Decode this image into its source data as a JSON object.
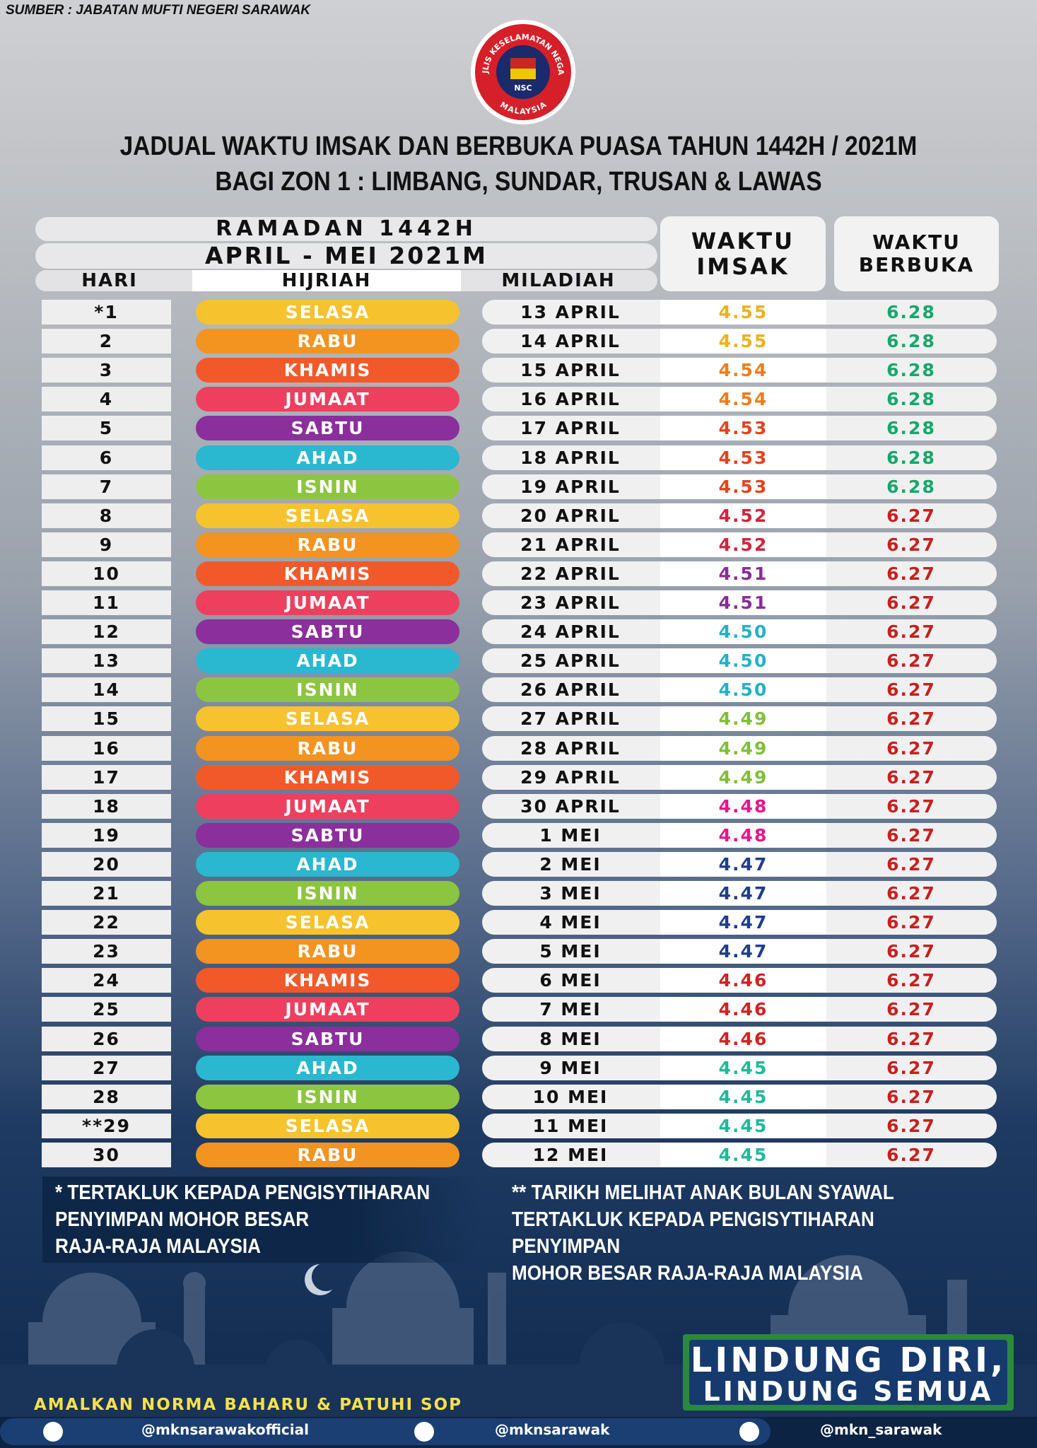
{
  "header": {
    "source": "SUMBER : JABATAN MUFTI NEGERI SARAWAK",
    "logo": {
      "top": "MAJLIS KESELAMATAN NEGARA",
      "center": "NSC",
      "bottom": "MALAYSIA"
    },
    "title": [
      "JADUAL WAKTU IMSAK DAN BERBUKA PUASA TAHUN 1442H / 2021M",
      "BAGI ZON 1 : LIMBANG, SUNDAR, TRUSAN & LAWAS"
    ]
  },
  "table": {
    "ramadan": "RAMADAN 1442H",
    "months": "APRIL - MEI 2021M",
    "columns": [
      "HARI",
      "HIJRIAH",
      "MILADIAH",
      "WAKTU IMSAK",
      "WAKTU BERBUKA"
    ],
    "rows": [
      [
        "*1",
        "SELASA",
        "13 APRIL",
        "4.55",
        "6.28"
      ],
      [
        "2",
        "RABU",
        "14 APRIL",
        "4.55",
        "6.28"
      ],
      [
        "3",
        "KHAMIS",
        "15 APRIL",
        "4.54",
        "6.28"
      ],
      [
        "4",
        "JUMAAT",
        "16 APRIL",
        "4.54",
        "6.28"
      ],
      [
        "5",
        "SABTU",
        "17 APRIL",
        "4.53",
        "6.28"
      ],
      [
        "6",
        "AHAD",
        "18 APRIL",
        "4.53",
        "6.28"
      ],
      [
        "7",
        "ISNIN",
        "19 APRIL",
        "4.53",
        "6.28"
      ],
      [
        "8",
        "SELASA",
        "20 APRIL",
        "4.52",
        "6.27"
      ],
      [
        "9",
        "RABU",
        "21 APRIL",
        "4.52",
        "6.27"
      ],
      [
        "10",
        "KHAMIS",
        "22 APRIL",
        "4.51",
        "6.27"
      ],
      [
        "11",
        "JUMAAT",
        "23 APRIL",
        "4.51",
        "6.27"
      ],
      [
        "12",
        "SABTU",
        "24 APRIL",
        "4.50",
        "6.27"
      ],
      [
        "13",
        "AHAD",
        "25 APRIL",
        "4.50",
        "6.27"
      ],
      [
        "14",
        "ISNIN",
        "26 APRIL",
        "4.50",
        "6.27"
      ],
      [
        "15",
        "SELASA",
        "27 APRIL",
        "4.49",
        "6.27"
      ],
      [
        "16",
        "RABU",
        "28 APRIL",
        "4.49",
        "6.27"
      ],
      [
        "17",
        "KHAMIS",
        "29 APRIL",
        "4.49",
        "6.27"
      ],
      [
        "18",
        "JUMAAT",
        "30 APRIL",
        "4.48",
        "6.27"
      ],
      [
        "19",
        "SABTU",
        "1 MEI",
        "4.48",
        "6.27"
      ],
      [
        "20",
        "AHAD",
        "2 MEI",
        "4.47",
        "6.27"
      ],
      [
        "21",
        "ISNIN",
        "3 MEI",
        "4.47",
        "6.27"
      ],
      [
        "22",
        "SELASA",
        "4 MEI",
        "4.47",
        "6.27"
      ],
      [
        "23",
        "RABU",
        "5 MEI",
        "4.47",
        "6.27"
      ],
      [
        "24",
        "KHAMIS",
        "6 MEI",
        "4.46",
        "6.27"
      ],
      [
        "25",
        "JUMAAT",
        "7 MEI",
        "4.46",
        "6.27"
      ],
      [
        "26",
        "SABTU",
        "8 MEI",
        "4.46",
        "6.27"
      ],
      [
        "27",
        "AHAD",
        "9 MEI",
        "4.45",
        "6.27"
      ],
      [
        "28",
        "ISNIN",
        "10 MEI",
        "4.45",
        "6.27"
      ],
      [
        "**29",
        "SELASA",
        "11 MEI",
        "4.45",
        "6.27"
      ],
      [
        "30",
        "RABU",
        "12 MEI",
        "4.45",
        "6.27"
      ]
    ]
  },
  "notes": {
    "left": [
      "* TERTAKLUK KEPADA PENGISYTIHARAN",
      "PENYIMPAN MOHOR BESAR",
      "RAJA-RAJA MALAYSIA"
    ],
    "right": [
      "** TARIKH MELIHAT ANAK BULAN SYAWAL",
      "TERTAKLUK KEPADA PENGISYTIHARAN PENYIMPAN",
      "MOHOR BESAR RAJA-RAJA MALAYSIA"
    ]
  },
  "footer": {
    "slogan": [
      "LINDUNG DIRI,",
      "LINDUNG SEMUA"
    ],
    "sop": "AMALKAN NORMA BAHARU & PATUHI SOP",
    "social": [
      "@mknsarawakofficial",
      "@mknsarawak",
      "@mkn_sarawak"
    ]
  }
}
